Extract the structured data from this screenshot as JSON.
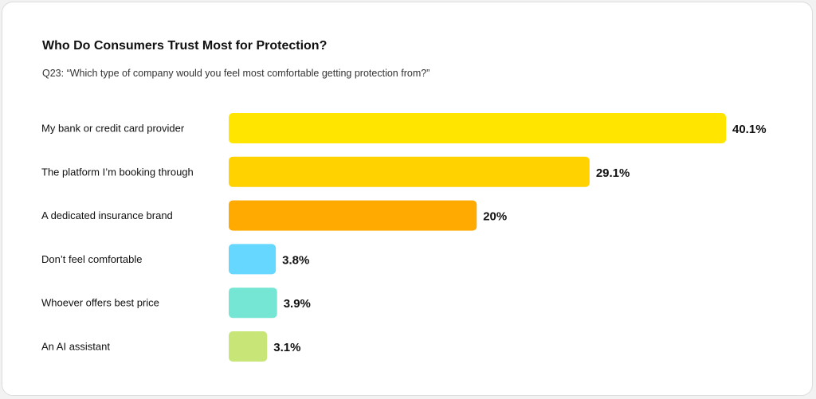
{
  "chart_data": {
    "type": "bar",
    "orientation": "horizontal",
    "title": "Who Do Consumers Trust Most for Protection?",
    "subtitle": "Q23: “Which type of company would you feel most comfortable getting protection from?”",
    "categories": [
      "My bank or credit card provider",
      "The platform I’m booking through",
      "A dedicated insurance brand",
      "Don’t feel comfortable",
      "Whoever offers best price",
      "An AI assistant"
    ],
    "values": [
      40.1,
      29.1,
      20,
      3.8,
      3.9,
      3.1
    ],
    "value_labels": [
      "40.1%",
      "29.1%",
      "20%",
      "3.8%",
      "3.9%",
      "3.1%"
    ],
    "colors": [
      "#FFE500",
      "#FFD200",
      "#FFAA00",
      "#66D7FF",
      "#76E6D4",
      "#C8E678"
    ],
    "xlim": [
      0,
      40.1
    ],
    "grid": false,
    "legend": "none"
  }
}
